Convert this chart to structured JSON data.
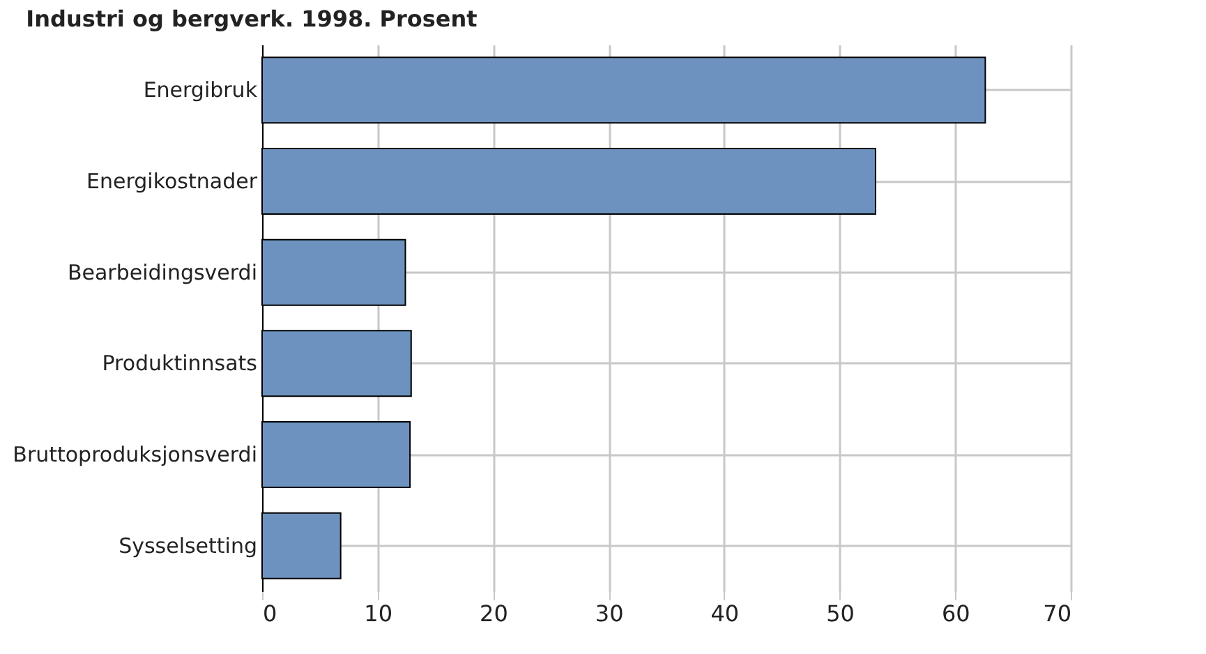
{
  "chart_data": {
    "type": "bar",
    "orientation": "horizontal",
    "title": "Industri og bergverk. 1998. Prosent",
    "categories": [
      "Energibruk",
      "Energikostnader",
      "Bearbeidingsverdi",
      "Produktinnsats",
      "Bruttoproduksjonsverdi",
      "Sysselsetting"
    ],
    "values": [
      62.6,
      53.1,
      12.4,
      12.9,
      12.8,
      6.8
    ],
    "color": "#6d92bf",
    "xlim": [
      0,
      70
    ],
    "xticks": [
      0,
      10,
      20,
      30,
      40,
      50,
      60,
      70
    ],
    "grid": true
  }
}
